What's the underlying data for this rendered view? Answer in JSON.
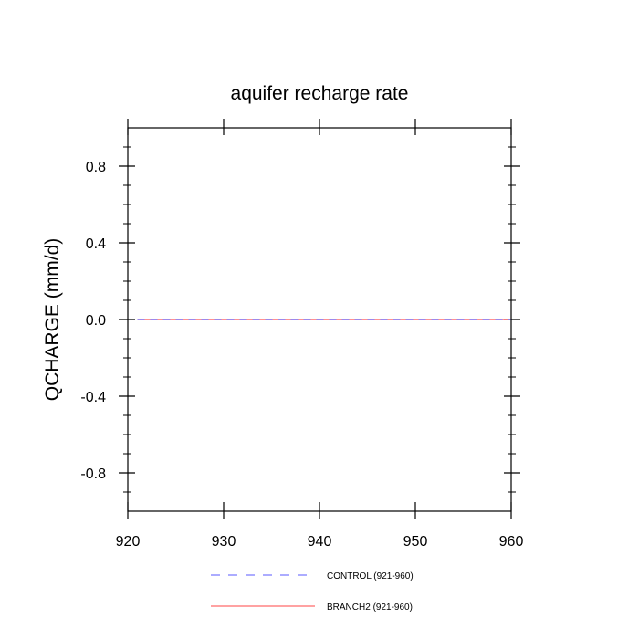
{
  "chart_data": {
    "type": "line",
    "title": "aquifer recharge rate",
    "xlabel": "",
    "ylabel": "QCHARGE  (mm/d)",
    "xlim": [
      920,
      960
    ],
    "ylim": [
      -1.0,
      1.0
    ],
    "x_ticks": [
      920,
      930,
      940,
      950,
      960
    ],
    "x_tick_labels": [
      "920",
      "930",
      "940",
      "950",
      "960"
    ],
    "y_ticks": [
      0.8,
      0.4,
      0.0,
      -0.4,
      -0.8
    ],
    "y_tick_labels": [
      "0.8",
      "0.4",
      "0.0",
      "-0.4",
      "-0.8"
    ],
    "grid": false,
    "legend_position": "bottom",
    "series": [
      {
        "name": "CONTROL (921-960)",
        "color": "#7b7bff",
        "style": "dashed",
        "x": [
          921,
          960
        ],
        "y": [
          0.0,
          0.0
        ]
      },
      {
        "name": "BRANCH2 (921-960)",
        "color": "#ff6b6b",
        "style": "solid",
        "x": [
          921,
          960
        ],
        "y": [
          0.0,
          0.0
        ]
      }
    ]
  }
}
